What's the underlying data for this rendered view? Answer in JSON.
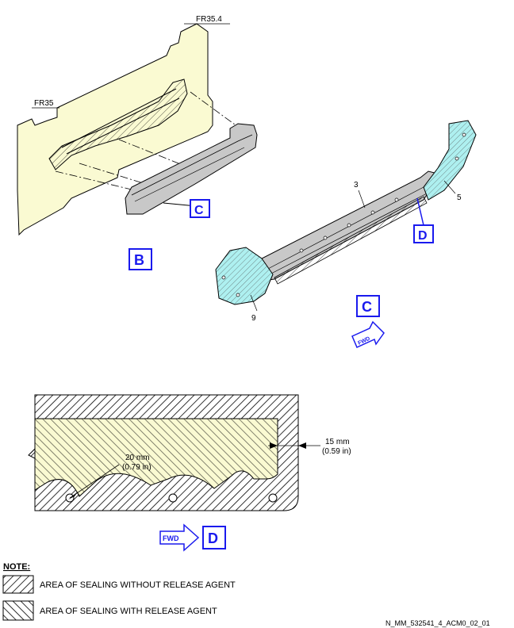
{
  "frames": {
    "fr35": "FR35",
    "fr35_4": "FR35.4"
  },
  "views": {
    "b": "B",
    "c": "C",
    "d": "D"
  },
  "callouts": {
    "c": "C",
    "d": "D"
  },
  "items": {
    "n3": "3",
    "n5": "5",
    "n9": "9"
  },
  "fwd": "FWD",
  "dims": {
    "d20_mm": "20 mm",
    "d20_in": "(0.79 in)",
    "d15_mm": "15 mm",
    "d15_in": "(0.59 in)"
  },
  "note": {
    "title": "NOTE:",
    "without": "AREA OF SEALING WITHOUT RELEASE AGENT",
    "with": "AREA OF SEALING WITH RELEASE AGENT"
  },
  "ref": "N_MM_532541_4_ACM0_02_01",
  "colors": {
    "structure": "#fafad2",
    "part": "#c8c8c8",
    "sealant": "#aef0f0",
    "callout": "#1a1aee"
  }
}
